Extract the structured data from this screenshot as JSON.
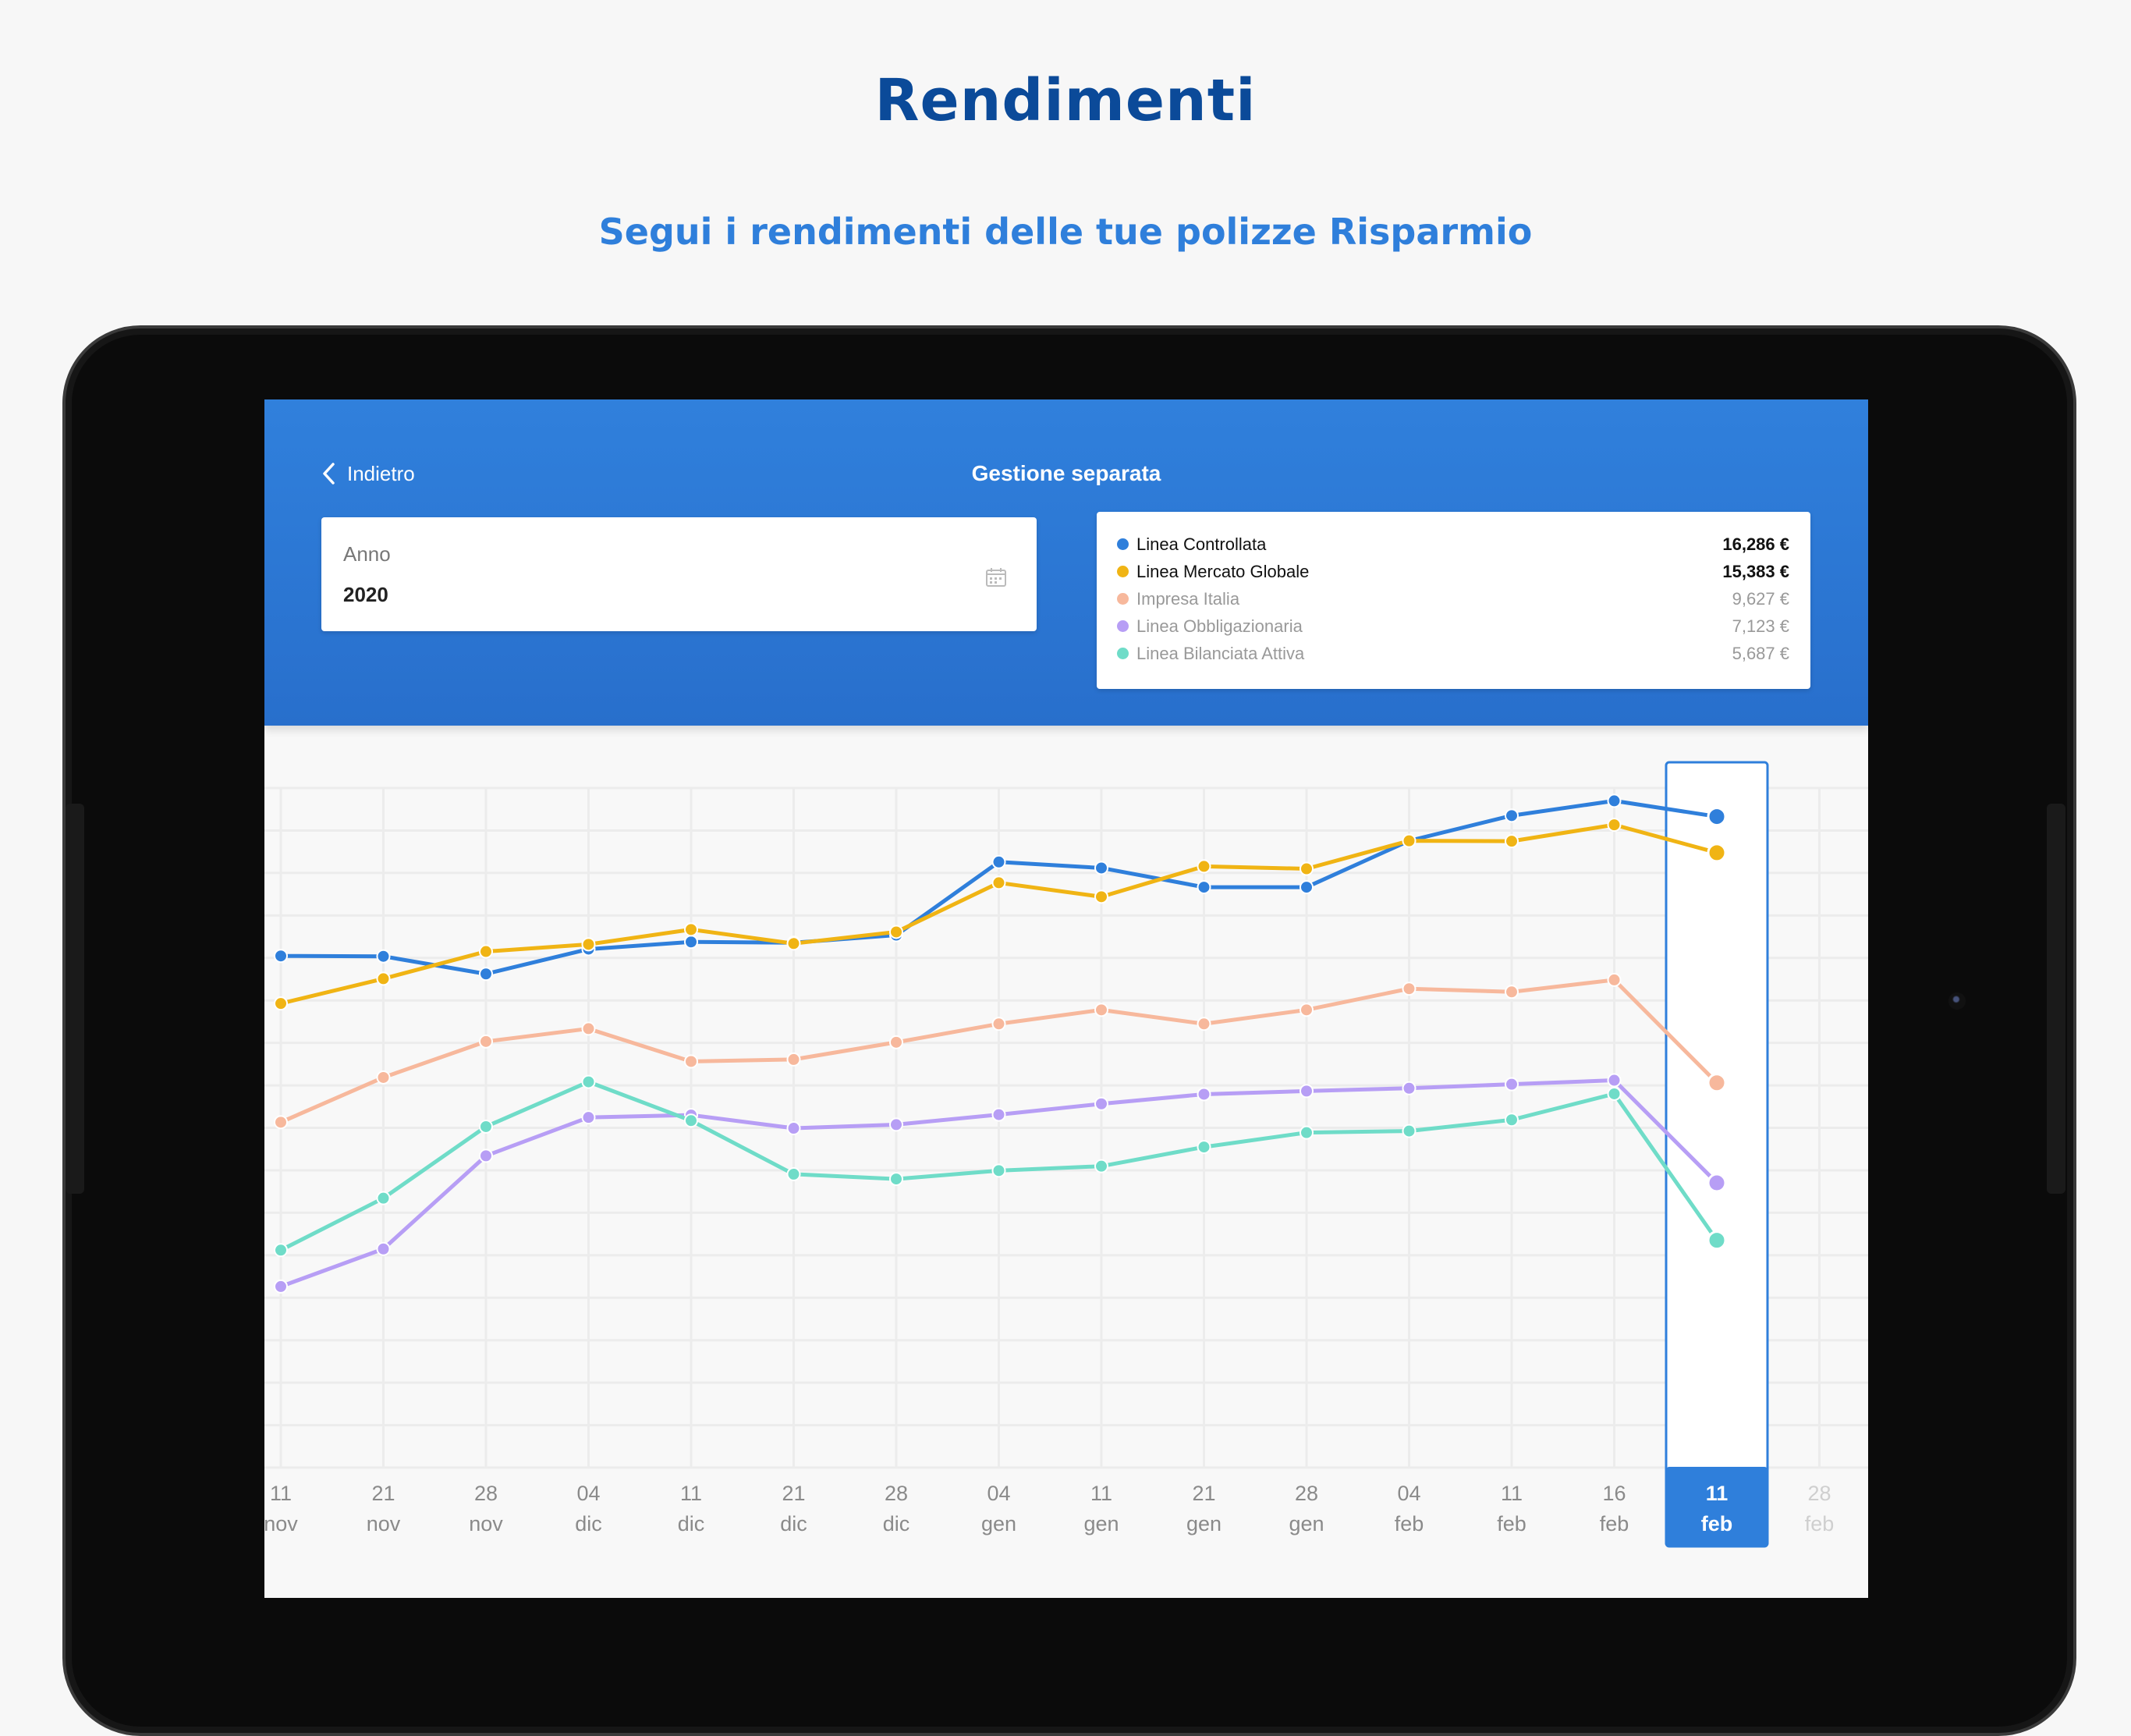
{
  "page": {
    "title": "Rendimenti",
    "subtitle": "Segui i rendimenti delle tue polizze Risparmio"
  },
  "app": {
    "back_label": "Indietro",
    "title": "Gestione separata",
    "year_field": {
      "label": "Anno",
      "value": "2020",
      "icon": "calendar-icon"
    }
  },
  "legend": [
    {
      "name": "Linea Controllata",
      "value": "16,286 €",
      "color": "#2f7fdb",
      "active": true
    },
    {
      "name": "Linea Mercato Globale",
      "value": "15,383 €",
      "color": "#f0b414",
      "active": true
    },
    {
      "name": "Impresa Italia",
      "value": "9,627 €",
      "color": "#f7b89c",
      "active": false
    },
    {
      "name": "Linea Obbligazionaria",
      "value": "7,123 €",
      "color": "#b79ef5",
      "active": false
    },
    {
      "name": "Linea Bilanciata Attiva",
      "value": "5,687 €",
      "color": "#6fdcc8",
      "active": false
    }
  ],
  "chart_data": {
    "type": "line",
    "x": [
      {
        "day": "11",
        "month": "nov"
      },
      {
        "day": "21",
        "month": "nov"
      },
      {
        "day": "28",
        "month": "nov"
      },
      {
        "day": "04",
        "month": "dic"
      },
      {
        "day": "11",
        "month": "dic"
      },
      {
        "day": "21",
        "month": "dic"
      },
      {
        "day": "28",
        "month": "dic"
      },
      {
        "day": "04",
        "month": "gen"
      },
      {
        "day": "11",
        "month": "gen"
      },
      {
        "day": "21",
        "month": "gen"
      },
      {
        "day": "28",
        "month": "gen"
      },
      {
        "day": "04",
        "month": "feb"
      },
      {
        "day": "11",
        "month": "feb"
      },
      {
        "day": "16",
        "month": "feb"
      },
      {
        "day": "11",
        "month": "feb"
      },
      {
        "day": "28",
        "month": "feb"
      }
    ],
    "selected_index": 14,
    "ylim": [
      0,
      17000
    ],
    "grid": true,
    "series": [
      {
        "name": "Linea Controllata",
        "color": "#2f7fdb",
        "values": [
          12800,
          12790,
          12350,
          12970,
          13150,
          13130,
          13320,
          15150,
          15000,
          14520,
          14520,
          15680,
          16310,
          16680,
          16286,
          null
        ]
      },
      {
        "name": "Linea Mercato Globale",
        "color": "#f0b414",
        "values": [
          11610,
          12230,
          12910,
          13090,
          13460,
          13110,
          13400,
          14630,
          14280,
          15040,
          14980,
          15680,
          15670,
          16080,
          15383,
          null
        ]
      },
      {
        "name": "Impresa Italia",
        "color": "#f7b89c",
        "values": [
          8640,
          9760,
          10660,
          10980,
          10160,
          10210,
          10640,
          11100,
          11450,
          11100,
          11450,
          11980,
          11900,
          12200,
          9627,
          null
        ]
      },
      {
        "name": "Linea Obbligazionaria",
        "color": "#b79ef5",
        "values": [
          4530,
          5470,
          7800,
          8760,
          8820,
          8490,
          8580,
          8830,
          9100,
          9340,
          9420,
          9490,
          9590,
          9690,
          7123,
          null
        ]
      },
      {
        "name": "Linea Bilanciata Attiva",
        "color": "#6fdcc8",
        "values": [
          5440,
          6740,
          8530,
          9650,
          8680,
          7340,
          7220,
          7430,
          7540,
          8020,
          8380,
          8420,
          8700,
          9350,
          5687,
          null
        ]
      }
    ]
  }
}
